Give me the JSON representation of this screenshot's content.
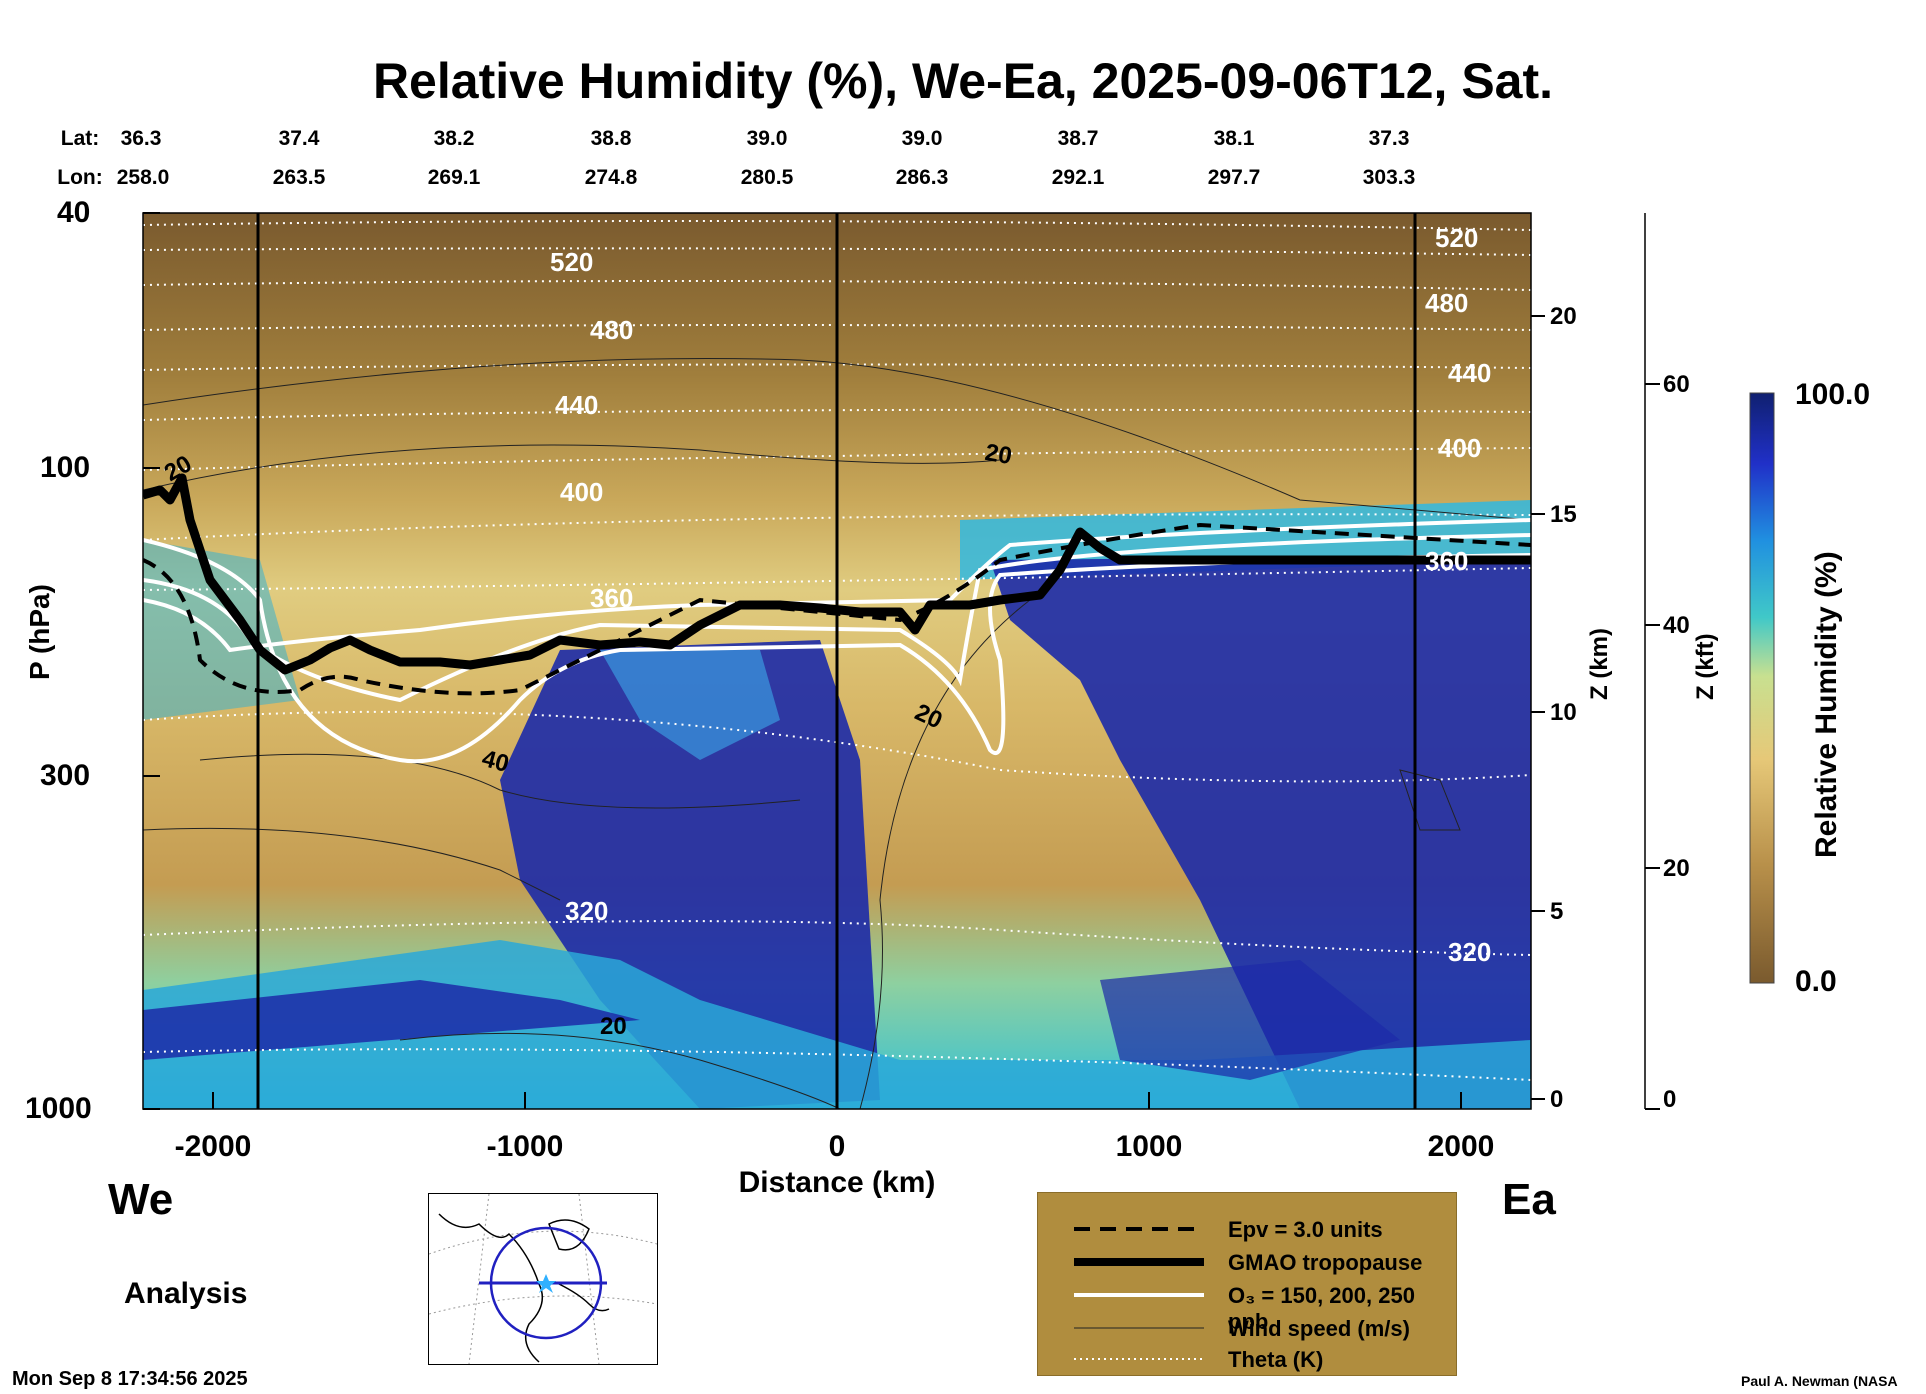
{
  "chart_data": {
    "type": "heatmap",
    "title": "Relative Humidity (%), We-Ea, 2025-09-06T12, Sat.",
    "xlabel": "Distance (km)",
    "ylabel": "P (hPa)",
    "right_axis_1_label": "Z (km)",
    "right_axis_2_label": "Z (kft)",
    "colorbar_label": "Relative Humidity (%)",
    "colorbar_range": [
      "0.0",
      "100.0"
    ],
    "x_ticks": [
      "-2000",
      "-1000",
      "0",
      "1000",
      "2000"
    ],
    "x_range": [
      -2220,
      2220
    ],
    "y_ticks": [
      "40",
      "100",
      "300",
      "1000"
    ],
    "y_range": [
      1000,
      40
    ],
    "y_scale": "log",
    "z_km_ticks": [
      "0",
      "5",
      "10",
      "15",
      "20"
    ],
    "z_kft_ticks": [
      "0",
      "20",
      "40",
      "60"
    ],
    "lat_label": "Lat:",
    "lon_label": "Lon:",
    "lat": [
      "36.3",
      "37.4",
      "38.2",
      "38.8",
      "39.0",
      "39.0",
      "38.7",
      "38.1",
      "37.3"
    ],
    "lon": [
      "258.0",
      "263.5",
      "269.1",
      "274.8",
      "280.5",
      "286.3",
      "292.1",
      "297.7",
      "303.3"
    ],
    "theta_labels": [
      "520",
      "480",
      "440",
      "400",
      "360",
      "320"
    ],
    "wind_labels": [
      "20",
      "40",
      "20",
      "20",
      "20"
    ],
    "colors": {
      "dry": "#7a5a2e",
      "mid": "#d8c070",
      "moist": "#2ab8d8",
      "saturated": "#1a1a90"
    }
  },
  "labels": {
    "west": "We",
    "east": "Ea",
    "analysis": "Analysis",
    "timestamp": "Mon Sep  8 17:34:56 2025",
    "credit": "Paul A. Newman (NASA"
  },
  "legend": {
    "epv": "Epv = 3.0 units",
    "tropopause": "GMAO tropopause",
    "ozone": "O₃ = 150, 200, 250 ppb",
    "wind": "Wind speed (m/s)",
    "theta": "Theta (K)"
  }
}
